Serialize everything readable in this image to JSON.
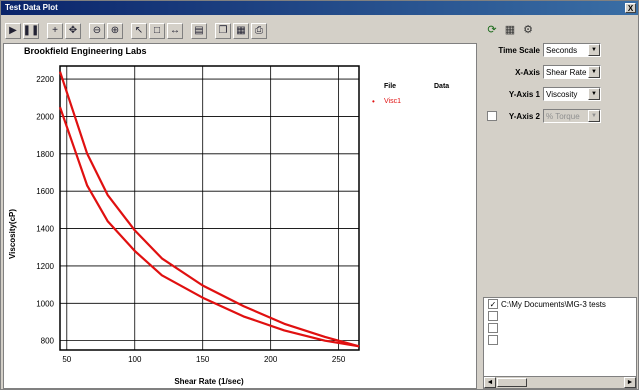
{
  "window": {
    "title": "Test Data Plot",
    "close_label": "X"
  },
  "toolbar": {
    "icons": [
      "play-icon",
      "pause-icon",
      "crosshair-icon",
      "pan-icon",
      "zoom-out-icon",
      "zoom-in-icon",
      "select-icon",
      "box-icon",
      "fit-icon",
      "export-icon",
      "copy-icon",
      "save-icon",
      "print-icon"
    ]
  },
  "controls": {
    "time_scale": {
      "label": "Time Scale",
      "value": "Seconds"
    },
    "x_axis": {
      "label": "X-Axis",
      "value": "Shear Rate"
    },
    "y_axis_1": {
      "label": "Y-Axis 1",
      "value": "Viscosity"
    },
    "y_axis_2": {
      "label": "Y-Axis 2",
      "value": "% Torque",
      "checked": false
    }
  },
  "legend": {
    "file_header": "File",
    "data_header": "Data",
    "entry_label": "Visc1",
    "entry_marker": "•"
  },
  "file_list": {
    "items": [
      {
        "label": "C:\\My Documents\\MG-3 tests",
        "checked": true
      },
      {
        "label": "",
        "checked": false
      },
      {
        "label": "",
        "checked": false
      },
      {
        "label": "",
        "checked": false
      }
    ],
    "scroll_left": "◄",
    "scroll_right": "►"
  },
  "colors": {
    "series": "#e01010",
    "grid": "#000000",
    "title_bar": "#0a246a"
  },
  "chart_data": {
    "type": "line",
    "title": "Brookfield Engineering Labs",
    "xlabel": "Shear Rate (1/sec)",
    "ylabel": "Viscosity(cP)",
    "xlim": [
      45,
      265
    ],
    "ylim": [
      750,
      2270
    ],
    "xticks": [
      50,
      100,
      150,
      200,
      250
    ],
    "yticks": [
      800,
      1000,
      1200,
      1400,
      1600,
      1800,
      2000,
      2200
    ],
    "grid": true,
    "legend_position": "top-right",
    "series": [
      {
        "name": "Visc1",
        "x": [
          45,
          55,
          65,
          80,
          100,
          120,
          150,
          180,
          210,
          240,
          265
        ],
        "y": [
          2240,
          2020,
          1800,
          1580,
          1390,
          1240,
          1095,
          985,
          890,
          820,
          770
        ]
      },
      {
        "x": [
          45,
          55,
          65,
          80,
          100,
          120,
          150,
          180,
          210,
          240,
          265
        ],
        "y": [
          2050,
          1840,
          1630,
          1440,
          1280,
          1150,
          1030,
          930,
          855,
          800,
          770
        ]
      }
    ]
  }
}
